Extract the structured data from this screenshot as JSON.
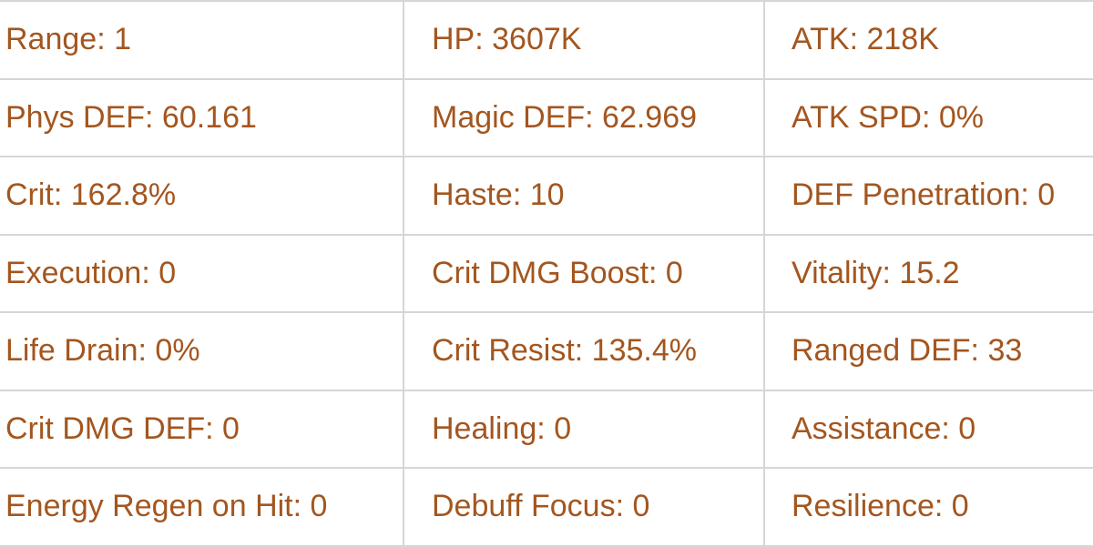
{
  "text_color": "#a3561f",
  "border_color": "#d6d6d6",
  "stats": [
    [
      "Range: 1",
      "HP: 3607K",
      "ATK: 218K"
    ],
    [
      "Phys DEF: 60.161",
      "Magic DEF: 62.969",
      "ATK SPD: 0%"
    ],
    [
      "Crit: 162.8%",
      "Haste: 10",
      "DEF Penetration: 0"
    ],
    [
      "Execution: 0",
      "Crit DMG Boost: 0",
      "Vitality: 15.2"
    ],
    [
      "Life Drain: 0%",
      "Crit Resist: 135.4%",
      "Ranged DEF: 33"
    ],
    [
      "Crit DMG DEF: 0",
      "Healing: 0",
      "Assistance: 0"
    ],
    [
      "Energy Regen on Hit: 0",
      "Debuff Focus: 0",
      "Resilience: 0"
    ]
  ]
}
